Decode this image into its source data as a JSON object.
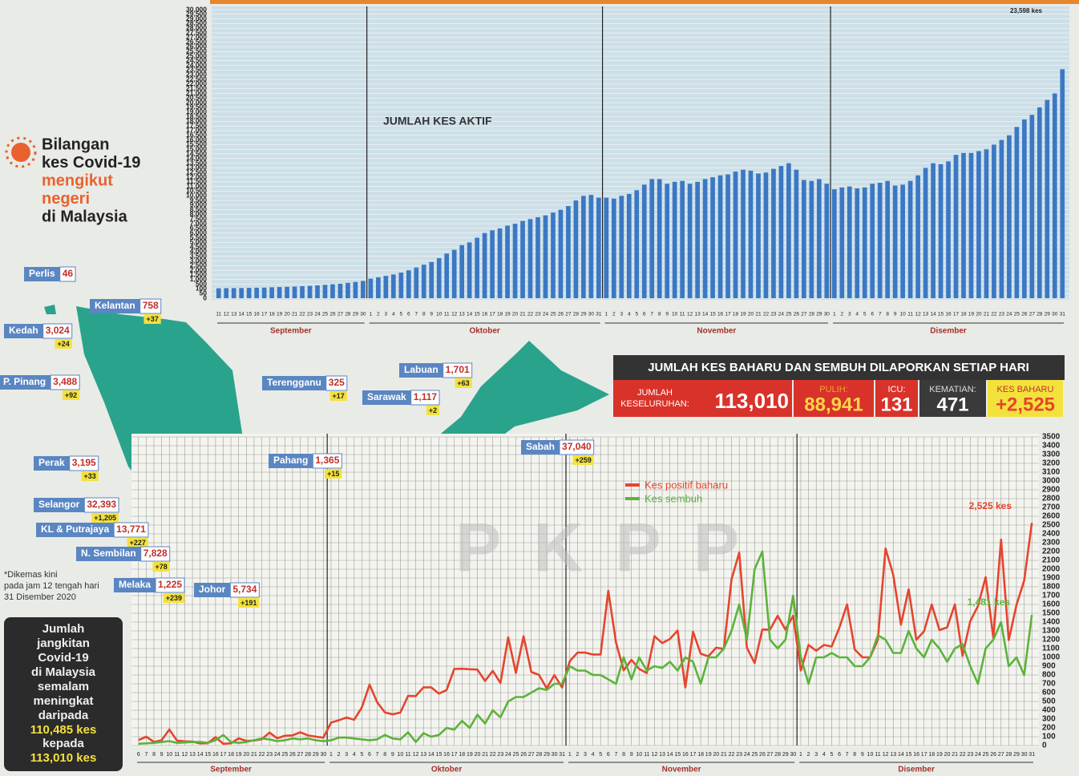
{
  "title": {
    "lines": [
      "Bilangan",
      "kes Covid-19",
      "mengikut",
      "negeri",
      "di Malaysia"
    ]
  },
  "chart_data": [
    {
      "type": "bar",
      "title": "JUMLAH KES AKTIF",
      "color": "#3b78c4",
      "grid": true,
      "annotations": [
        "23,598 kes"
      ],
      "months": [
        "September",
        "Oktober",
        "November",
        "Disember"
      ],
      "categories": [
        "11",
        "12",
        "13",
        "14",
        "15",
        "16",
        "17",
        "18",
        "19",
        "20",
        "21",
        "22",
        "23",
        "24",
        "25",
        "26",
        "27",
        "28",
        "29",
        "30",
        "1",
        "2",
        "3",
        "4",
        "5",
        "6",
        "7",
        "8",
        "9",
        "10",
        "11",
        "12",
        "13",
        "14",
        "15",
        "16",
        "17",
        "18",
        "19",
        "20",
        "21",
        "22",
        "23",
        "24",
        "25",
        "26",
        "27",
        "28",
        "29",
        "30",
        "31",
        "1",
        "2",
        "3",
        "4",
        "5",
        "6",
        "7",
        "8",
        "9",
        "10",
        "11",
        "12",
        "13",
        "14",
        "15",
        "16",
        "17",
        "18",
        "19",
        "20",
        "21",
        "22",
        "23",
        "24",
        "25",
        "26",
        "27",
        "28",
        "29",
        "30",
        "1",
        "2",
        "3",
        "4",
        "5",
        "6",
        "7",
        "8",
        "9",
        "10",
        "11",
        "12",
        "13",
        "14",
        "15",
        "16",
        "17",
        "18",
        "19",
        "20",
        "21",
        "22",
        "23",
        "24",
        "25",
        "26",
        "27",
        "28",
        "29",
        "30",
        "31"
      ],
      "values": [
        150,
        160,
        170,
        175,
        190,
        200,
        210,
        240,
        260,
        280,
        300,
        330,
        360,
        400,
        450,
        500,
        550,
        650,
        750,
        850,
        1100,
        1250,
        1400,
        1550,
        1750,
        2000,
        2300,
        2600,
        2900,
        3300,
        3800,
        4200,
        4700,
        5000,
        5500,
        6000,
        6300,
        6500,
        6800,
        7000,
        7300,
        7500,
        7700,
        7900,
        8200,
        8500,
        8900,
        9500,
        10000,
        10100,
        9800,
        9800,
        9700,
        10000,
        10200,
        10600,
        11200,
        11800,
        11800,
        11300,
        11500,
        11600,
        11300,
        11500,
        11800,
        12000,
        12200,
        12300,
        12600,
        12800,
        12700,
        12400,
        12500,
        12900,
        13200,
        13500,
        12800,
        11700,
        11600,
        11800,
        11300,
        10700,
        10900,
        11000,
        10800,
        10900,
        11300,
        11400,
        11600,
        11100,
        11200,
        11600,
        12200,
        13000,
        13500,
        13400,
        13700,
        14400,
        14600,
        14600,
        14800,
        15000,
        15500,
        16000,
        16500,
        17400,
        18200,
        18700,
        19500,
        20300,
        21000,
        23598
      ],
      "ylim": [
        0,
        30000
      ],
      "yticks": [
        0,
        50,
        100,
        500,
        {
          "value": 1000,
          "label": "1,000"
        },
        {
          "value": 1500,
          "label": "1,500"
        },
        {
          "value": 2000,
          "label": "2,000"
        },
        {
          "value": 2500,
          "label": "2,500"
        },
        {
          "value": 3000,
          "label": "3,000"
        },
        {
          "value": 3500,
          "label": "3,500"
        },
        {
          "value": 4000,
          "label": "4,000"
        },
        {
          "value": 4500,
          "label": "4,500"
        },
        {
          "value": 5000,
          "label": "5,000"
        },
        {
          "value": 5500,
          "label": "5,500"
        },
        {
          "value": 6000,
          "label": "6,000"
        },
        {
          "value": 6500,
          "label": "6,500"
        },
        {
          "value": 7000,
          "label": "7,000"
        },
        {
          "value": 7500,
          "label": "7,500"
        },
        {
          "value": 8000,
          "label": "8,000"
        },
        {
          "value": 8500,
          "label": "8,500"
        },
        {
          "value": 9000,
          "label": "9,000"
        },
        {
          "value": 9500,
          "label": "9,500"
        },
        {
          "value": 10000,
          "label": "10,000"
        },
        {
          "value": 10500,
          "label": "10,500"
        },
        {
          "value": 11000,
          "label": "11,000"
        },
        {
          "value": 11500,
          "label": "11,500"
        },
        {
          "value": 12000,
          "label": "12,000"
        },
        {
          "value": 12500,
          "label": "12,500"
        },
        {
          "value": 13000,
          "label": "13,000"
        },
        {
          "value": 13500,
          "label": "13,500"
        },
        {
          "value": 14000,
          "label": "14,000"
        },
        {
          "value": 14500,
          "label": "14,500"
        },
        {
          "value": 15000,
          "label": "15,000"
        },
        {
          "value": 15500,
          "label": "15,500"
        },
        {
          "value": 16000,
          "label": "16,000"
        },
        {
          "value": 16500,
          "label": "16,500"
        },
        {
          "value": 17000,
          "label": "17,000"
        },
        {
          "value": 17500,
          "label": "17,500"
        },
        {
          "value": 18000,
          "label": "18,000"
        },
        {
          "value": 18500,
          "label": "18,500"
        },
        {
          "value": 19000,
          "label": "19,000"
        },
        {
          "value": 19500,
          "label": "19,500"
        },
        {
          "value": 20000,
          "label": "20,000"
        },
        {
          "value": 20500,
          "label": "20,500"
        },
        {
          "value": 21000,
          "label": "21,000"
        },
        {
          "value": 21500,
          "label": "21,500"
        },
        {
          "value": 22000,
          "label": "22,000"
        },
        {
          "value": 22500,
          "label": "22,500"
        },
        {
          "value": 23000,
          "label": "23,000"
        },
        {
          "value": 23500,
          "label": "23,500"
        },
        {
          "value": 24000,
          "label": "24,000"
        },
        {
          "value": 24500,
          "label": "24,500"
        },
        {
          "value": 25000,
          "label": "25,000"
        },
        {
          "value": 25500,
          "label": "25,500"
        },
        {
          "value": 26000,
          "label": "26,000"
        },
        {
          "value": 26500,
          "label": "26,500"
        },
        {
          "value": 27000,
          "label": "27,000"
        },
        {
          "value": 27500,
          "label": "27,500"
        },
        {
          "value": 28000,
          "label": "28,000"
        },
        {
          "value": 28500,
          "label": "28,500"
        },
        {
          "value": 29000,
          "label": "29,000"
        },
        {
          "value": 29500,
          "label": "29,500"
        },
        {
          "value": 30000,
          "label": "30,000"
        }
      ]
    },
    {
      "type": "line",
      "grid": true,
      "watermark": "PKPP",
      "annotations": [
        "2,525 kes",
        "1,481 kes"
      ],
      "months": [
        "September",
        "Oktober",
        "November",
        "Disember"
      ],
      "categories": [
        "6",
        "7",
        "8",
        "9",
        "10",
        "11",
        "12",
        "13",
        "14",
        "15",
        "16",
        "17",
        "18",
        "19",
        "20",
        "21",
        "22",
        "23",
        "24",
        "25",
        "26",
        "27",
        "28",
        "29",
        "30",
        "1",
        "2",
        "3",
        "4",
        "5",
        "6",
        "7",
        "8",
        "9",
        "10",
        "11",
        "12",
        "13",
        "14",
        "15",
        "16",
        "17",
        "18",
        "19",
        "20",
        "21",
        "22",
        "23",
        "24",
        "25",
        "26",
        "27",
        "28",
        "29",
        "30",
        "31",
        "1",
        "2",
        "3",
        "4",
        "5",
        "6",
        "7",
        "8",
        "9",
        "10",
        "11",
        "12",
        "13",
        "14",
        "15",
        "16",
        "17",
        "18",
        "19",
        "20",
        "21",
        "22",
        "23",
        "24",
        "25",
        "26",
        "27",
        "28",
        "29",
        "30",
        "1",
        "2",
        "3",
        "4",
        "5",
        "6",
        "7",
        "8",
        "9",
        "10",
        "11",
        "12",
        "13",
        "14",
        "15",
        "16",
        "17",
        "18",
        "19",
        "20",
        "21",
        "22",
        "23",
        "24",
        "25",
        "26",
        "27",
        "28",
        "29",
        "30",
        "31"
      ],
      "series": [
        {
          "name": "Kes positif baharu",
          "color": "#e5452d",
          "values": [
            62,
            100,
            41,
            60,
            182,
            55,
            47,
            45,
            24,
            27,
            95,
            20,
            25,
            82,
            52,
            57,
            71,
            147,
            82,
            111,
            115,
            150,
            115,
            101,
            89,
            260,
            287,
            317,
            293,
            432,
            691,
            489,
            375,
            354,
            374,
            563,
            561,
            660,
            660,
            589,
            629,
            869,
            871,
            865,
            862,
            732,
            847,
            710,
            1228,
            823,
            1240,
            835,
            801,
            649,
            799,
            659,
            957,
            1054,
            1054,
            1032,
            1032,
            1755,
            1168,
            852,
            972,
            869,
            822,
            1240,
            1162,
            1208,
            1304,
            659,
            1290,
            1041,
            1012,
            1109,
            1096,
            1884,
            2188,
            1109,
            935,
            1315,
            1315,
            1472,
            1315,
            1472,
            851,
            1141,
            1075,
            1141,
            1123,
            1335,
            1600,
            1090,
            1000,
            1000,
            1200,
            2234,
            1937,
            1371,
            1772,
            1200,
            1295,
            1599,
            1310,
            1340,
            1600,
            1018,
            1410,
            1581,
            1909,
            1220,
            2335,
            1196,
            1594,
            1870,
            2525
          ]
        },
        {
          "name": "Kes sembuh",
          "color": "#5bb33a",
          "values": [
            20,
            25,
            30,
            40,
            50,
            30,
            35,
            40,
            40,
            30,
            60,
            120,
            40,
            30,
            40,
            60,
            80,
            70,
            50,
            60,
            80,
            70,
            80,
            60,
            50,
            60,
            90,
            90,
            80,
            70,
            60,
            70,
            120,
            80,
            70,
            150,
            40,
            140,
            100,
            120,
            200,
            180,
            280,
            200,
            350,
            250,
            400,
            320,
            500,
            550,
            550,
            600,
            650,
            630,
            700,
            700,
            900,
            850,
            850,
            800,
            800,
            750,
            700,
            1000,
            750,
            1000,
            850,
            900,
            880,
            950,
            850,
            1000,
            950,
            700,
            1000,
            1000,
            1100,
            1300,
            1600,
            1200,
            2000,
            2200,
            1200,
            1100,
            1200,
            1700,
            1000,
            700,
            1000,
            1000,
            1050,
            1000,
            1000,
            900,
            900,
            1000,
            1250,
            1200,
            1050,
            1050,
            1300,
            1100,
            1000,
            1200,
            1100,
            950,
            1100,
            1150,
            900,
            700,
            1100,
            1200,
            1400,
            900,
            1000,
            800,
            1481
          ]
        }
      ],
      "ylim": [
        0,
        3500
      ],
      "yticks": [
        0,
        100,
        200,
        300,
        400,
        500,
        600,
        700,
        800,
        900,
        1000,
        1100,
        1200,
        1300,
        1400,
        1500,
        1600,
        1700,
        1800,
        1900,
        2000,
        2100,
        2200,
        2300,
        2400,
        2500,
        2600,
        2700,
        2800,
        2900,
        3000,
        3100,
        3200,
        3300,
        3400,
        3500
      ]
    }
  ],
  "map": {
    "states": [
      {
        "name": "Perlis",
        "total": "46"
      },
      {
        "name": "Kelantan",
        "total": "758",
        "change": "+37"
      },
      {
        "name": "Kedah",
        "total": "3,024",
        "change": "+24"
      },
      {
        "name": "P. Pinang",
        "total": "3,488",
        "change": "+92"
      },
      {
        "name": "Terengganu",
        "total": "325",
        "change": "+17"
      },
      {
        "name": "Labuan",
        "total": "1,701",
        "change": "+63"
      },
      {
        "name": "Sarawak",
        "total": "1,117",
        "change": "+2"
      },
      {
        "name": "Sabah",
        "total": "37,040",
        "change": "+259"
      },
      {
        "name": "Perak",
        "total": "3,195",
        "change": "+33"
      },
      {
        "name": "Pahang",
        "total": "1,365",
        "change": "+15"
      },
      {
        "name": "Selangor",
        "total": "32,393",
        "change": "+1,205"
      },
      {
        "name": "KL & Putrajaya",
        "total": "13,771",
        "change": "+227"
      },
      {
        "name": "N. Sembilan",
        "total": "7,828",
        "change": "+78"
      },
      {
        "name": "Melaka",
        "total": "1,225",
        "change": "+239"
      },
      {
        "name": "Johor",
        "total": "5,734",
        "change": "+191"
      }
    ],
    "note": [
      "*Dikemas kini",
      "pada jam 12 tengah hari",
      "31 Disember 2020"
    ]
  },
  "summary": {
    "title": "JUMLAH KES BAHARU DAN SEMBUH DILAPORKAN SETIAP HARI",
    "items": [
      {
        "label": [
          "JUMLAH",
          "KESELURUHAN:"
        ],
        "value": "113,010"
      },
      {
        "label": [
          "PULIH:"
        ],
        "value": "88,941"
      },
      {
        "label": [
          "ICU:"
        ],
        "value": "131"
      },
      {
        "label": [
          "KEMATIAN:"
        ],
        "value": "471"
      },
      {
        "label": [
          "KES BAHARU"
        ],
        "value": "+2,525"
      }
    ]
  },
  "infobox": {
    "lines": [
      "Jumlah",
      "jangkitan",
      "Covid-19",
      "di Malaysia",
      "semalam",
      "meningkat",
      "daripada"
    ],
    "from": "110,485 kes",
    "word": "kepada",
    "to": "113,010 kes"
  }
}
